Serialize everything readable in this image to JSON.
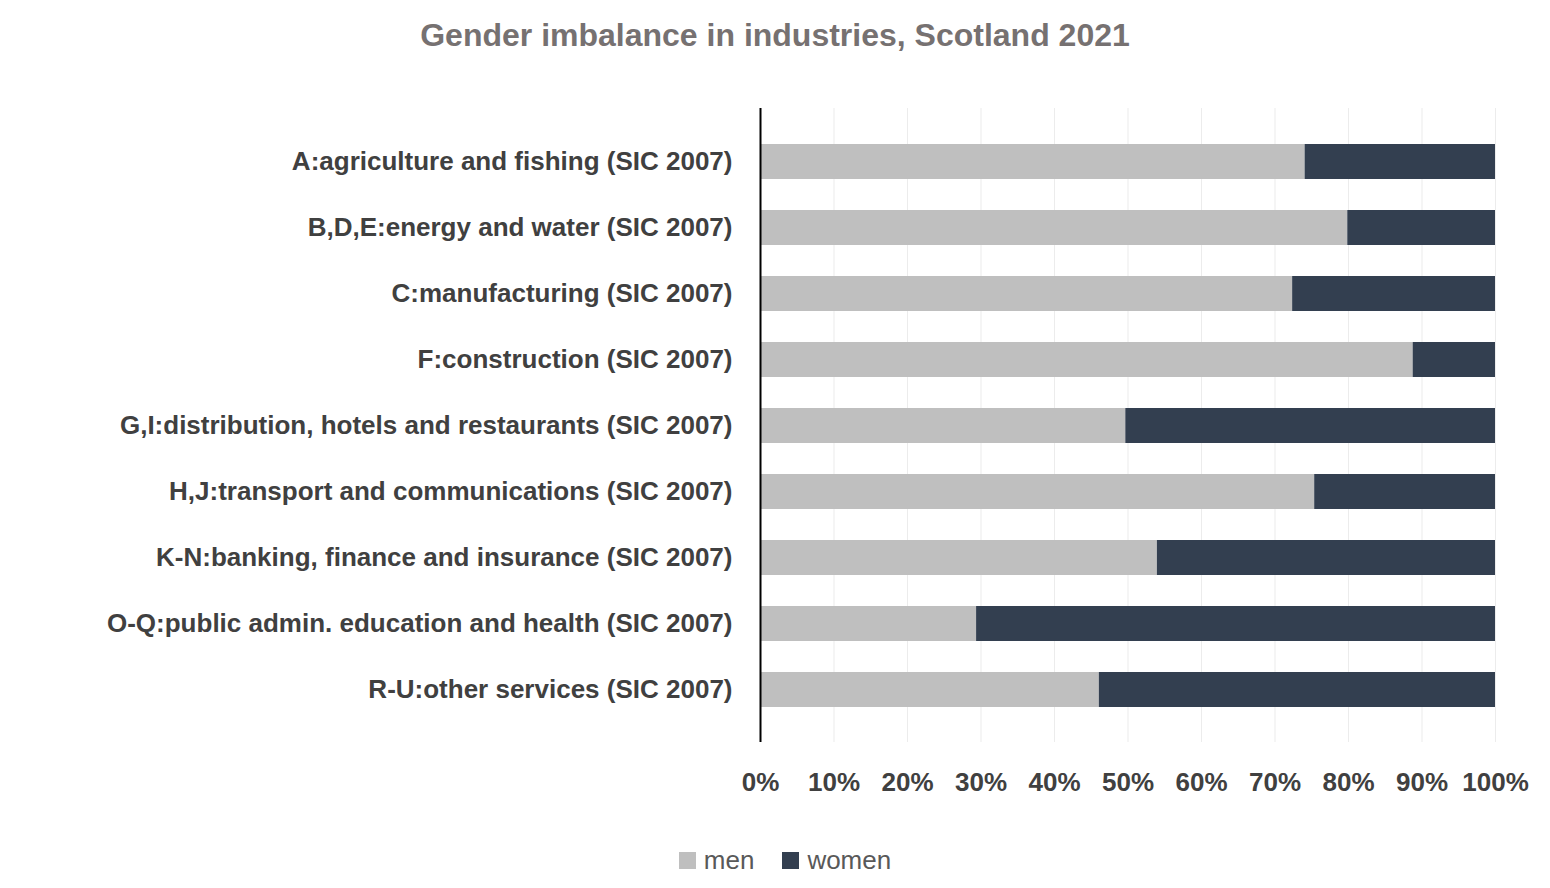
{
  "chart_data": {
    "type": "bar",
    "title": "Gender imbalance in industries, Scotland 2021",
    "orientation": "horizontal",
    "stacked": true,
    "grid": true,
    "legend": "bottom",
    "categories": [
      "A:agriculture and fishing (SIC 2007)",
      "B,D,E:energy and water (SIC 2007)",
      "C:manufacturing (SIC 2007)",
      "F:construction (SIC 2007)",
      "G,I:distribution, hotels and restaurants (SIC 2007)",
      "H,J:transport and communications (SIC 2007)",
      "K-N:banking, finance and insurance (SIC 2007)",
      "O-Q:public admin. education and health (SIC 2007)",
      "R-U:other services (SIC 2007)"
    ],
    "series": [
      {
        "name": "men",
        "color": "#bfbfbf",
        "values": [
          74.1,
          79.9,
          72.4,
          88.8,
          49.7,
          75.4,
          54.0,
          29.4,
          46.1
        ]
      },
      {
        "name": "women",
        "color": "#333f50",
        "values": [
          25.9,
          20.1,
          27.6,
          11.2,
          50.3,
          24.6,
          46.0,
          70.6,
          53.9
        ]
      }
    ],
    "xlim": [
      0,
      100
    ],
    "xticks": [
      {
        "value": 0,
        "label": "0%"
      },
      {
        "value": 10,
        "label": "10%"
      },
      {
        "value": 20,
        "label": "20%"
      },
      {
        "value": 30,
        "label": "30%"
      },
      {
        "value": 40,
        "label": "40%"
      },
      {
        "value": 50,
        "label": "50%"
      },
      {
        "value": 60,
        "label": "60%"
      },
      {
        "value": 70,
        "label": "70%"
      },
      {
        "value": 80,
        "label": "80%"
      },
      {
        "value": 90,
        "label": "90%"
      },
      {
        "value": 100,
        "label": "100%"
      }
    ]
  }
}
